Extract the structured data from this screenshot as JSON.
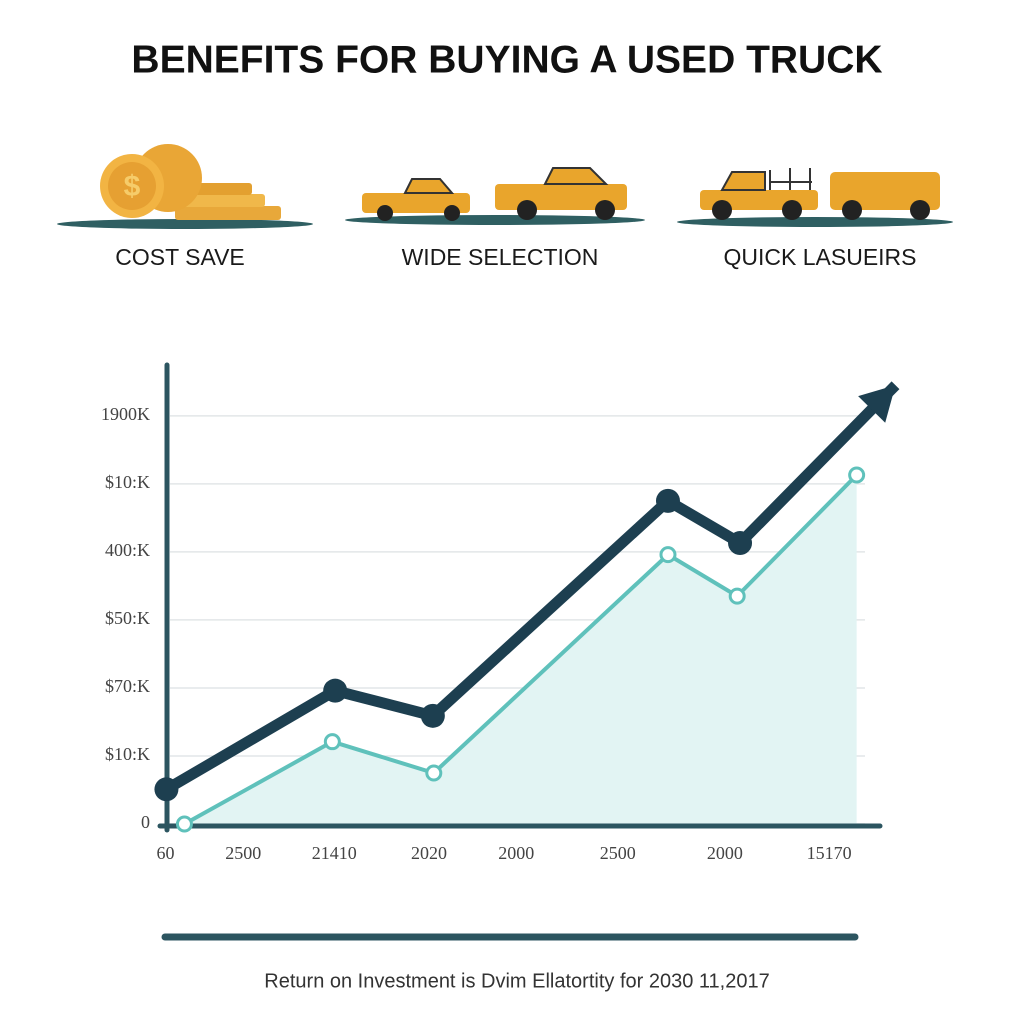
{
  "chart_data": {
    "type": "line",
    "title": "BENEFITS FOR BUYING A USED TRUCK",
    "caption": "Return on Investment is Dvim Ellatortity for 2030 11,2017",
    "xlim": [
      -0.1,
      7.8
    ],
    "ylim": [
      0,
      6.6
    ],
    "xticks": [
      {
        "value": 0,
        "label": "60"
      },
      {
        "value": 0.82,
        "label": "2500"
      },
      {
        "value": 1.78,
        "label": "21410"
      },
      {
        "value": 2.78,
        "label": "2020"
      },
      {
        "value": 3.7,
        "label": "2000"
      },
      {
        "value": 4.77,
        "label": "2500"
      },
      {
        "value": 5.9,
        "label": "2000"
      },
      {
        "value": 7.0,
        "label": "15170"
      }
    ],
    "yticks": [
      0,
      {
        "value": 1,
        "label": "$10:K"
      },
      {
        "value": 2,
        "label": "$70:K"
      },
      {
        "value": 3,
        "label": "$50:K"
      },
      {
        "value": 4,
        "label": "400:K"
      },
      {
        "value": 5,
        "label": "$10:K"
      },
      {
        "value": 6,
        "label": "1900K"
      }
    ],
    "grid": true,
    "series": [
      {
        "color": "#1d3f50",
        "x": [
          0.01,
          1.79,
          2.82,
          5.3,
          6.06,
          7.7
        ],
        "values": [
          0.51,
          1.96,
          1.59,
          4.75,
          4.13,
          6.45
        ]
      },
      {
        "color": "#5fc1bb",
        "area_color": "#e2f4f3",
        "x": [
          0.2,
          1.76,
          2.83,
          5.3,
          6.03,
          7.29
        ],
        "values": [
          0,
          1.21,
          0.75,
          3.96,
          3.35,
          5.13
        ]
      }
    ]
  },
  "features": [
    "COST SAVE",
    "WIDE SELECTION",
    "QUICK LASUEIRS"
  ]
}
